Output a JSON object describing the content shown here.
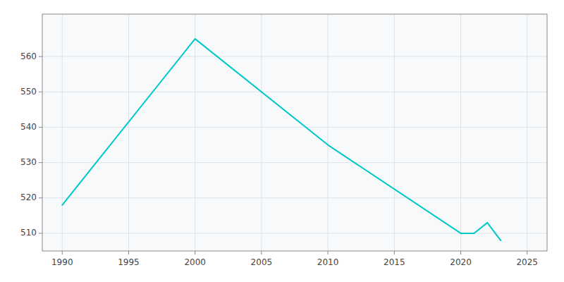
{
  "chart_data": {
    "type": "line",
    "x": [
      1990,
      2000,
      2010,
      2020,
      2021,
      2022,
      2023
    ],
    "values": [
      518,
      565,
      535,
      510,
      510,
      513,
      508
    ],
    "color": "#00c8c8",
    "xlim": [
      1988.5,
      2026.5
    ],
    "ylim": [
      505,
      572
    ],
    "xticks": [
      1990,
      1995,
      2000,
      2005,
      2010,
      2015,
      2020,
      2025
    ],
    "yticks": [
      510,
      520,
      530,
      540,
      550,
      560
    ],
    "grid": true
  }
}
